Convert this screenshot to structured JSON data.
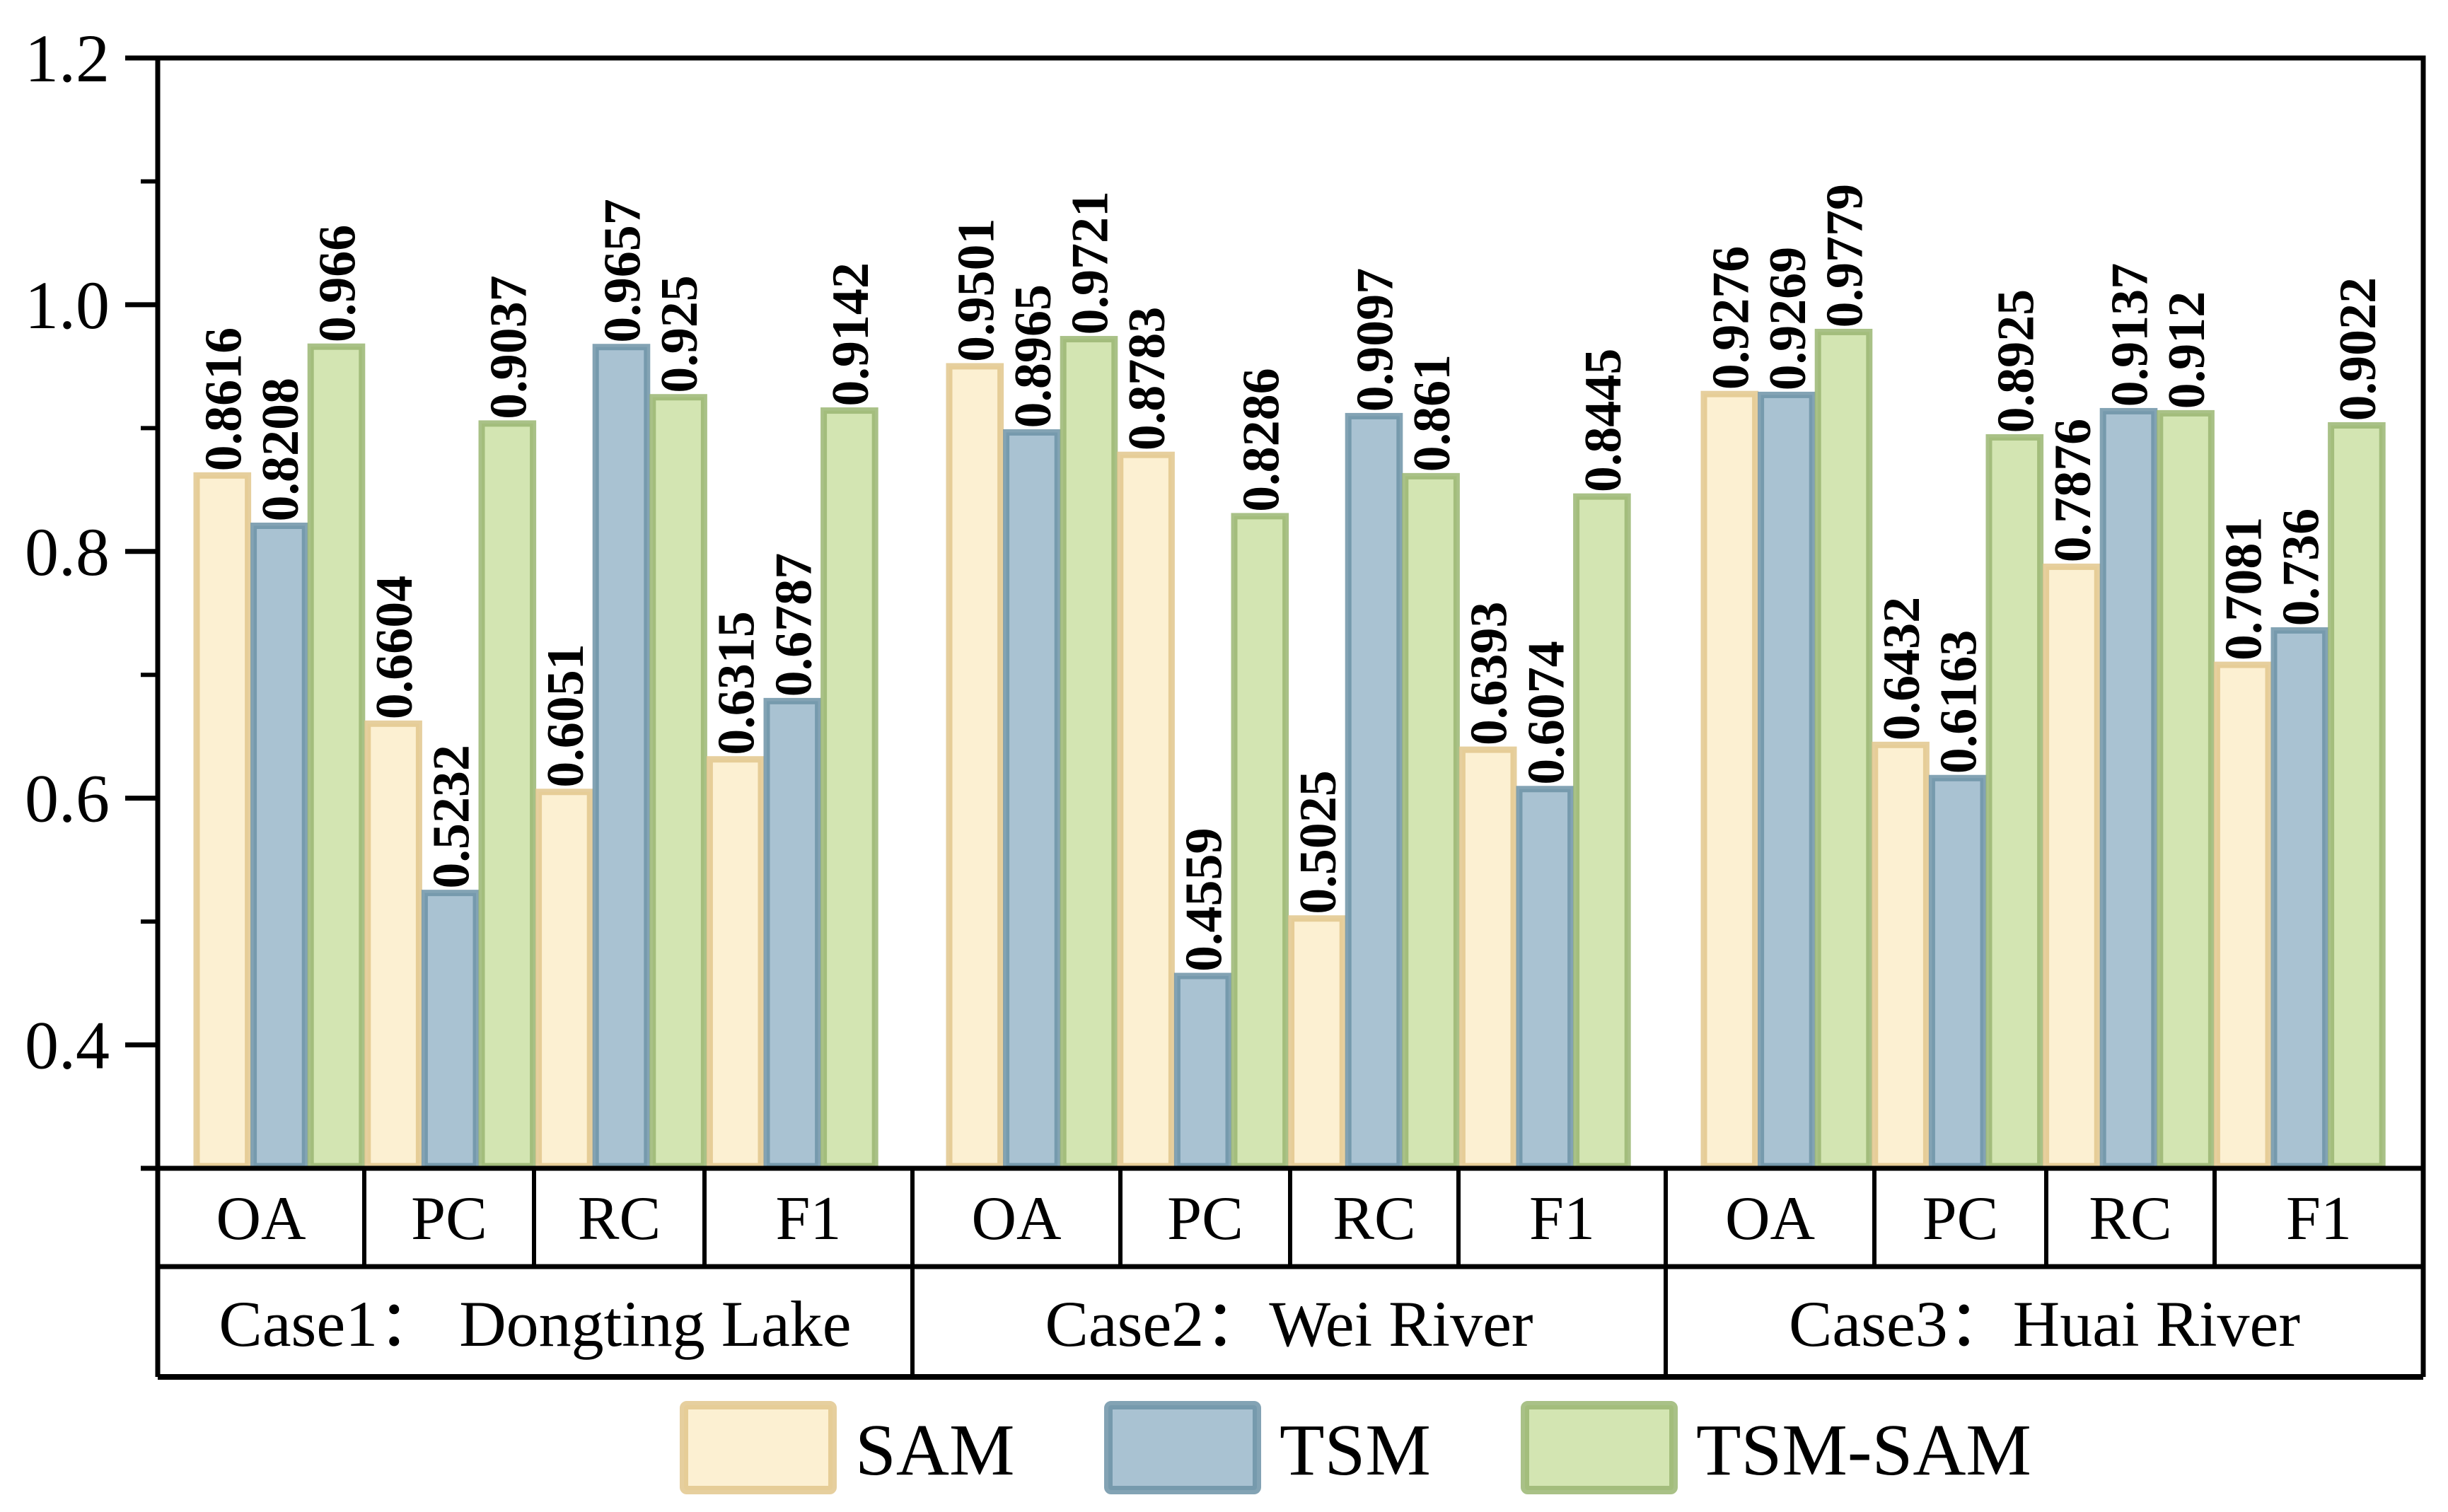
{
  "chart_data": {
    "type": "bar",
    "title": "",
    "xlabel": "",
    "ylabel": "",
    "ylim": [
      0.3,
      1.2
    ],
    "yticks": [
      "0.4",
      "0.6",
      "0.8",
      "1.0",
      "1.2"
    ],
    "yticks_values": [
      0.4,
      0.6,
      0.8,
      1.0,
      1.2
    ],
    "yminor_values": [
      0.5,
      0.7,
      0.9,
      1.1
    ],
    "grid": false,
    "legend_position": "bottom-center",
    "groups": [
      {
        "label": "Case1： Dongting Lake",
        "metrics": [
          "OA",
          "PC",
          "RC",
          "F1"
        ]
      },
      {
        "label": "Case2：Wei River",
        "metrics": [
          "OA",
          "PC",
          "RC",
          "F1"
        ]
      },
      {
        "label": "Case3：Huai River",
        "metrics": [
          "OA",
          "PC",
          "RC",
          "F1"
        ]
      }
    ],
    "categories": [
      "OA",
      "PC",
      "RC",
      "F1"
    ],
    "series": [
      {
        "name": "SAM",
        "fill": "#fcf0d2",
        "edge": "#e2c78d",
        "values": [
          [
            0.8616,
            0.6604,
            0.6051,
            0.6315
          ],
          [
            0.9501,
            0.8783,
            0.5025,
            0.6393
          ],
          [
            0.9276,
            0.6432,
            0.7876,
            0.7081
          ]
        ],
        "labels": [
          [
            "0.8616",
            "0.6604",
            "0.6051",
            "0.6315"
          ],
          [
            "0.9501",
            "0.8783",
            "0.5025",
            "0.6393"
          ],
          [
            "0.9276",
            "0.6432",
            "0.7876",
            "0.7081"
          ]
        ]
      },
      {
        "name": "TSM",
        "fill": "#a9c2d2",
        "edge": "#6d93a7",
        "values": [
          [
            0.8208,
            0.5232,
            0.9657,
            0.6787
          ],
          [
            0.8965,
            0.4559,
            0.9097,
            0.6074
          ],
          [
            0.9269,
            0.6163,
            0.9137,
            0.736
          ]
        ],
        "labels": [
          [
            "0.8208",
            "0.5232",
            "0.9657",
            "0.6787"
          ],
          [
            "0.8965",
            "0.4559",
            "0.9097",
            "0.6074"
          ],
          [
            "0.9269",
            "0.6163",
            "0.9137",
            "0.736"
          ]
        ]
      },
      {
        "name": "TSM-SAM",
        "fill": "#d3e5b2",
        "edge": "#9ab672",
        "values": [
          [
            0.966,
            0.9037,
            0.925,
            0.9142
          ],
          [
            0.9721,
            0.8286,
            0.861,
            0.8445
          ],
          [
            0.9779,
            0.8925,
            0.912,
            0.9022
          ]
        ],
        "labels": [
          [
            "0.966",
            "0.9037",
            "0.925",
            "0.9142"
          ],
          [
            "0.9721",
            "0.8286",
            "0.861",
            "0.8445"
          ],
          [
            "0.9779",
            "0.8925",
            "0.912",
            "0.9022"
          ]
        ]
      }
    ]
  }
}
